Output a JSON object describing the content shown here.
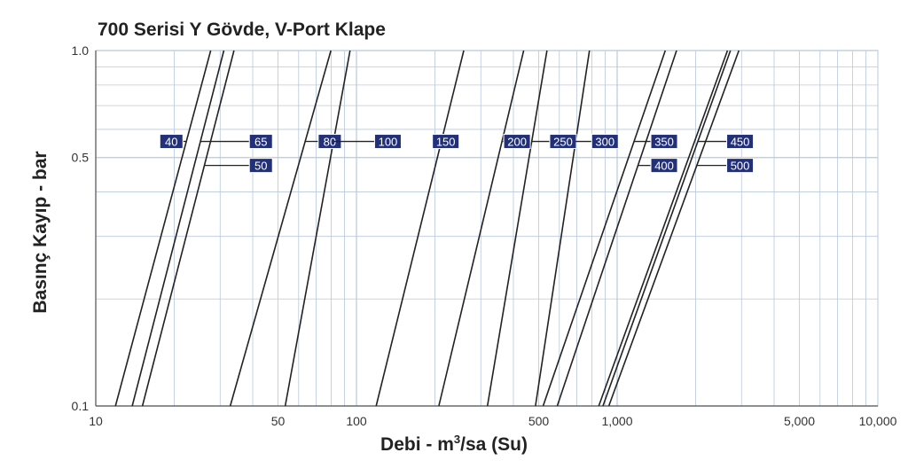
{
  "colors": {
    "grid": "#b9c8dc",
    "curve": "#222222",
    "label_fill": "#22307a",
    "label_text": "#ffffff"
  },
  "chart_data": {
    "type": "line",
    "title": "700 Serisi Y Gövde, V-Port Klape",
    "xlabel_prefix": "Debi - m",
    "xlabel_sup": "3",
    "xlabel_suffix": "/sa (Su)",
    "ylabel": "Basınç Kayıp - bar",
    "x_scale": "log",
    "y_scale": "log",
    "xlim": [
      10,
      10000
    ],
    "ylim": [
      0.1,
      1.0
    ],
    "x_ticks": [
      {
        "value": 10,
        "label": "10"
      },
      {
        "value": 50,
        "label": "50"
      },
      {
        "value": 100,
        "label": "100"
      },
      {
        "value": 500,
        "label": "500"
      },
      {
        "value": 1000,
        "label": "1,000"
      },
      {
        "value": 5000,
        "label": "5,000"
      },
      {
        "value": 10000,
        "label": "10,000"
      }
    ],
    "y_ticks": [
      {
        "value": 0.1,
        "label": "0.1"
      },
      {
        "value": 0.5,
        "label": "0.5"
      },
      {
        "value": 1.0,
        "label": "1.0"
      }
    ],
    "grid": true,
    "series": [
      {
        "name": "40",
        "points": [
          [
            11.9,
            0.1
          ],
          [
            27.6,
            1.0
          ]
        ],
        "label_row": 1,
        "label_side": "left"
      },
      {
        "name": "65",
        "points": [
          [
            13.8,
            0.1
          ],
          [
            31.0,
            1.0
          ]
        ],
        "label_row": 1,
        "label_side": "right"
      },
      {
        "name": "50",
        "points": [
          [
            15.1,
            0.1
          ],
          [
            33.9,
            1.0
          ]
        ],
        "label_row": 2,
        "label_side": "right"
      },
      {
        "name": "80",
        "points": [
          [
            32.8,
            0.1
          ],
          [
            79.8,
            1.0
          ]
        ],
        "label_row": 1,
        "label_side": "right"
      },
      {
        "name": "100",
        "points": [
          [
            53.3,
            0.1
          ],
          [
            94.5,
            1.0
          ]
        ],
        "label_row": 1,
        "label_side": "right"
      },
      {
        "name": "150",
        "points": [
          [
            119,
            0.1
          ],
          [
            258,
            1.0
          ]
        ],
        "label_row": 1,
        "label_side": "right"
      },
      {
        "name": "200",
        "points": [
          [
            207,
            0.1
          ],
          [
            438,
            1.0
          ]
        ],
        "label_row": 1,
        "label_side": "right"
      },
      {
        "name": "250",
        "points": [
          [
            318,
            0.1
          ],
          [
            538,
            1.0
          ]
        ],
        "label_row": 1,
        "label_side": "right"
      },
      {
        "name": "300",
        "points": [
          [
            486,
            0.1
          ],
          [
            783,
            1.0
          ]
        ],
        "label_row": 1,
        "label_side": "right"
      },
      {
        "name": "350",
        "points": [
          [
            520,
            0.1
          ],
          [
            1530,
            1.0
          ]
        ],
        "label_row": 1,
        "label_side": "right"
      },
      {
        "name": "400",
        "points": [
          [
            589,
            0.1
          ],
          [
            1690,
            1.0
          ]
        ],
        "label_row": 2,
        "label_side": "right"
      },
      {
        "name": "450",
        "points": [
          [
            882,
            0.1
          ],
          [
            2720,
            1.0
          ]
        ],
        "label_row": 1,
        "label_side": "right"
      },
      {
        "name": "500",
        "points": [
          [
            929,
            0.1
          ],
          [
            2930,
            1.0
          ]
        ],
        "label_row": 2,
        "label_side": "right"
      }
    ],
    "extra_curves": [
      {
        "points": [
          [
            850,
            0.1
          ],
          [
            2650,
            1.0
          ]
        ]
      }
    ],
    "size_labels": [
      {
        "text": "40",
        "row": 1,
        "x_value": 19.5
      },
      {
        "text": "65",
        "row": 1,
        "x_value": 43.0
      },
      {
        "text": "50",
        "row": 2,
        "x_value": 43.0
      },
      {
        "text": "80",
        "row": 1,
        "x_value": 79.0
      },
      {
        "text": "100",
        "row": 1,
        "x_value": 132.0
      },
      {
        "text": "150",
        "row": 1,
        "x_value": 220.0
      },
      {
        "text": "200",
        "row": 1,
        "x_value": 413.0
      },
      {
        "text": "250",
        "row": 1,
        "x_value": 620.0
      },
      {
        "text": "300",
        "row": 1,
        "x_value": 898.0
      },
      {
        "text": "350",
        "row": 1,
        "x_value": 1515.0
      },
      {
        "text": "400",
        "row": 2,
        "x_value": 1515.0
      },
      {
        "text": "450",
        "row": 1,
        "x_value": 2960.0
      },
      {
        "text": "500",
        "row": 2,
        "x_value": 2960.0
      }
    ],
    "label_row_y": {
      "1": 0.555,
      "2": 0.475
    }
  }
}
